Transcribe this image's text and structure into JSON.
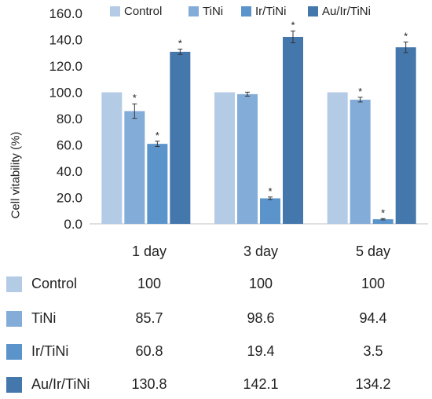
{
  "chart_data": {
    "type": "bar",
    "ylabel": "Cell vitability (%)",
    "ylim": [
      0,
      160
    ],
    "yticks": [
      "0.0",
      "20.0",
      "40.0",
      "60.0",
      "80.0",
      "100.0",
      "120.0",
      "140.0",
      "160.0"
    ],
    "categories": [
      "1 day",
      "3 day",
      "5 day"
    ],
    "legend_position": "top",
    "grid": false,
    "series": [
      {
        "name": "Control",
        "color": "#b4cbe6",
        "values": [
          100,
          100,
          100
        ],
        "errors": [
          0,
          0,
          0
        ],
        "significant": [
          false,
          false,
          false
        ]
      },
      {
        "name": "TiNi",
        "color": "#84acd8",
        "values": [
          85.7,
          98.6,
          94.4
        ],
        "errors": [
          5.5,
          1.5,
          1.8
        ],
        "significant": [
          true,
          false,
          true
        ]
      },
      {
        "name": "Ir/TiNi",
        "color": "#5b94cb",
        "values": [
          60.8,
          19.4,
          3.5
        ],
        "errors": [
          2.0,
          1.0,
          0.5
        ],
        "significant": [
          true,
          true,
          true
        ]
      },
      {
        "name": "Au/Ir/TiNi",
        "color": "#4477ab",
        "values": [
          130.8,
          142.1,
          134.2
        ],
        "errors": [
          2.0,
          4.5,
          4.0
        ],
        "significant": [
          true,
          true,
          true
        ]
      }
    ],
    "significance_marker": "*"
  },
  "table": {
    "rows": [
      {
        "label": "Control",
        "values": [
          "100",
          "100",
          "100"
        ]
      },
      {
        "label": "TiNi",
        "values": [
          "85.7",
          "98.6",
          "94.4"
        ]
      },
      {
        "label": "Ir/TiNi",
        "values": [
          "60.8",
          "19.4",
          "3.5"
        ]
      },
      {
        "label": "Au/Ir/TiNi",
        "values": [
          "130.8",
          "142.1",
          "134.2"
        ]
      }
    ]
  }
}
